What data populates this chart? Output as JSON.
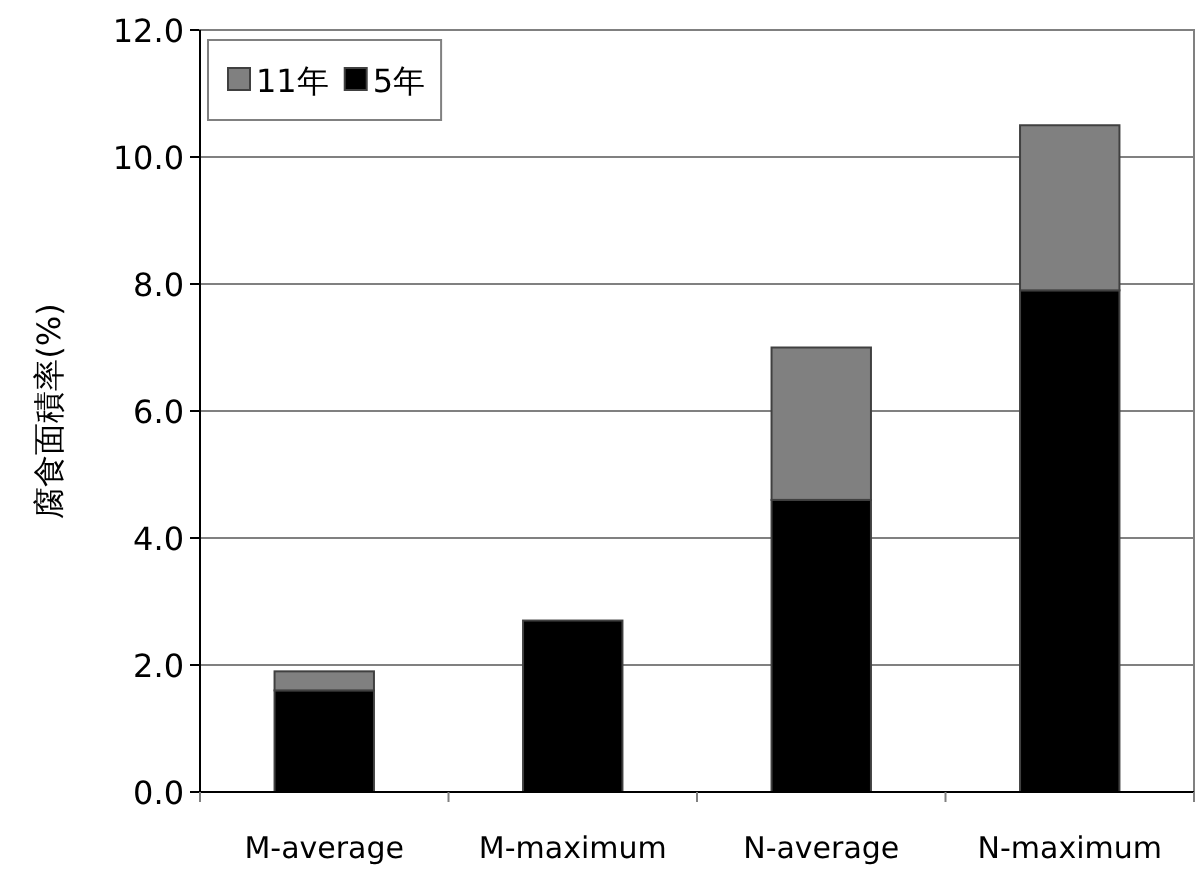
{
  "chart_data": {
    "type": "bar",
    "stacked": true,
    "ylabel": "腐食面積率(%)",
    "categories": [
      "M-average",
      "M-maximum",
      "N-average",
      "N-maximum"
    ],
    "series": [
      {
        "name": "5年",
        "color": "#000000",
        "values": [
          1.6,
          2.7,
          4.6,
          7.9
        ]
      },
      {
        "name": "11年",
        "color": "#808080",
        "values": [
          0.3,
          null,
          2.4,
          2.6
        ]
      }
    ],
    "ylim": [
      0,
      12
    ],
    "yticks": [
      {
        "value": 0,
        "label": "0.0"
      },
      {
        "value": 2,
        "label": "2.0"
      },
      {
        "value": 4,
        "label": "4.0"
      },
      {
        "value": 6,
        "label": "6.0"
      },
      {
        "value": 8,
        "label": "8.0"
      },
      {
        "value": 10,
        "label": "10.0"
      },
      {
        "value": 12,
        "label": "12.0"
      }
    ],
    "grid": "y",
    "legend": "top left"
  }
}
